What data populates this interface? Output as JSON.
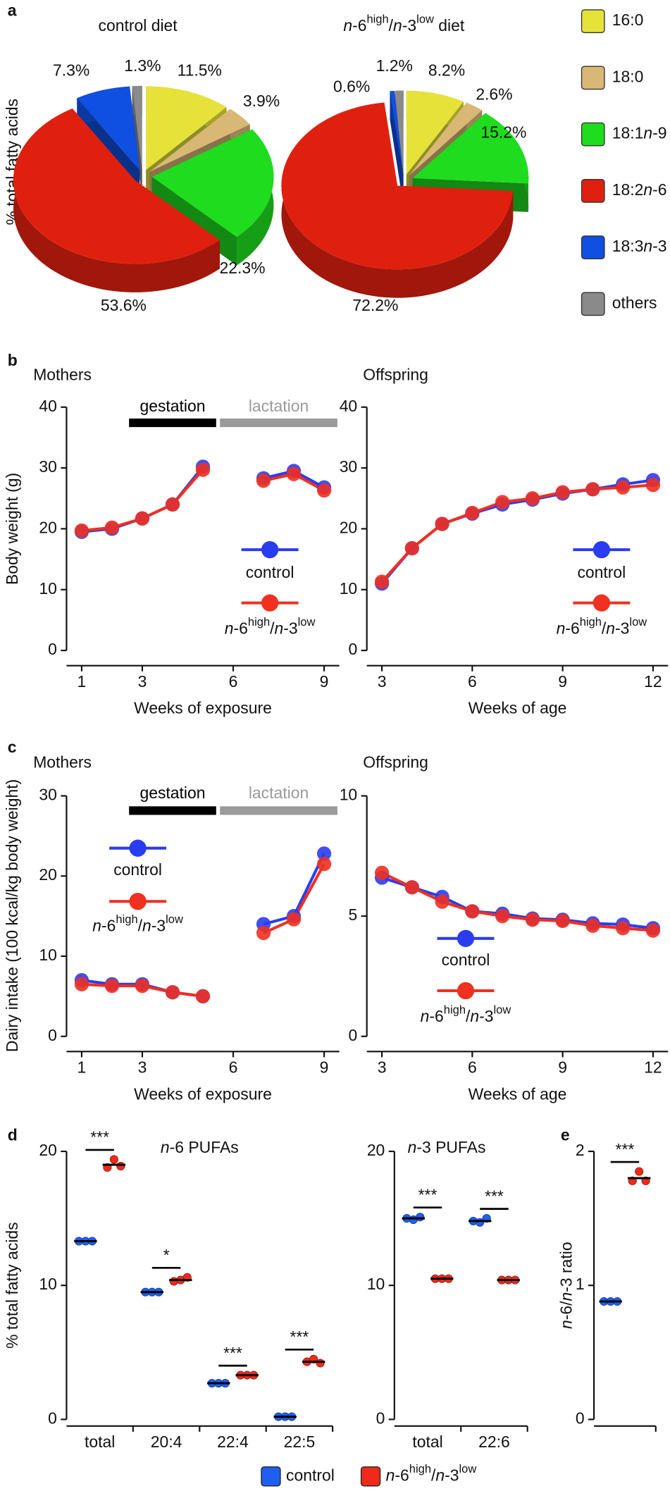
{
  "chart_data": [
    {
      "type": "pie",
      "panel": "a",
      "ylabel": "% total fatty acids",
      "categories": [
        "16:0",
        "18:0",
        "18:1n-9",
        "18:2n-6",
        "18:3n-3",
        "others"
      ],
      "colors": [
        "#e6e23a",
        "#d9b876",
        "#1fdc1f",
        "#e0200f",
        "#0f4fe2",
        "#8a8a8a"
      ],
      "series": [
        {
          "name": "control diet",
          "values": [
            11.5,
            3.9,
            22.3,
            53.6,
            7.3,
            1.3
          ],
          "value_labels": [
            "11.5%",
            "3.9%",
            "22.3%",
            "53.6%",
            "7.3%",
            "1.3%"
          ]
        },
        {
          "name": "n-6high/n-3low diet",
          "values": [
            8.2,
            2.6,
            15.2,
            72.2,
            0.6,
            1.2
          ],
          "value_labels": [
            "8.2%",
            "2.6%",
            "15.2%",
            "72.2%",
            "0.6%",
            "1.2%"
          ]
        }
      ]
    },
    {
      "type": "line",
      "panel": "b",
      "title": "Mothers",
      "xlabel": "Weeks of exposure",
      "ylabel": "Body weight (g)",
      "x": [
        1,
        2,
        3,
        4,
        5,
        6,
        7,
        8,
        9
      ],
      "xlim": [
        0.5,
        9.5
      ],
      "xticks": [
        1,
        3,
        6,
        9
      ],
      "ylim": [
        0,
        40
      ],
      "yticks": [
        0,
        10,
        20,
        30,
        40
      ],
      "periods": [
        {
          "label": "gestation",
          "start": 2.5,
          "end": 5.5,
          "color": "#000000"
        },
        {
          "label": "lactation",
          "start": 5.5,
          "end": 9.5,
          "color": "#9a9a9a"
        }
      ],
      "series": [
        {
          "name": "control",
          "color": "#2a3cf0",
          "values": [
            19.5,
            20.0,
            21.7,
            24.0,
            30.2,
            null,
            28.3,
            29.5,
            26.8
          ]
        },
        {
          "name": "n-6high/n-3low",
          "color": "#f03020",
          "values": [
            19.7,
            20.2,
            21.7,
            24.0,
            29.7,
            null,
            27.9,
            29.0,
            26.3
          ]
        }
      ]
    },
    {
      "type": "line",
      "title": "Offspring",
      "xlabel": "Weeks of age",
      "x": [
        3,
        4,
        5,
        6,
        7,
        8,
        9,
        10,
        11,
        12
      ],
      "xlim": [
        2.5,
        12.5
      ],
      "xticks": [
        3,
        6,
        9,
        12
      ],
      "ylim": [
        0,
        40
      ],
      "yticks": [
        0,
        10,
        20,
        30,
        40
      ],
      "series": [
        {
          "name": "control",
          "color": "#2a3cf0",
          "values": [
            11.0,
            16.8,
            20.8,
            22.5,
            24.0,
            24.8,
            25.8,
            26.5,
            27.3,
            28.0
          ]
        },
        {
          "name": "n-6high/n-3low",
          "color": "#f03020",
          "values": [
            11.3,
            16.8,
            20.8,
            22.6,
            24.4,
            25.0,
            26.0,
            26.5,
            26.8,
            27.2
          ]
        }
      ]
    },
    {
      "type": "line",
      "panel": "c",
      "title": "Mothers",
      "xlabel": "Weeks of exposure",
      "ylabel": "Dairy intake (100 kcal/kg body weight)",
      "x": [
        1,
        2,
        3,
        4,
        5,
        6,
        7,
        8,
        9
      ],
      "xlim": [
        0.5,
        9.5
      ],
      "xticks": [
        1,
        3,
        6,
        9
      ],
      "ylim": [
        0,
        30
      ],
      "yticks": [
        0,
        10,
        20,
        30
      ],
      "periods": [
        {
          "label": "gestation",
          "start": 2.5,
          "end": 5.5,
          "color": "#000000"
        },
        {
          "label": "lactation",
          "start": 5.5,
          "end": 9.5,
          "color": "#9a9a9a"
        }
      ],
      "series": [
        {
          "name": "control",
          "color": "#2a3cf0",
          "values": [
            7.0,
            6.5,
            6.5,
            5.5,
            5.0,
            null,
            14.0,
            15.0,
            22.8
          ]
        },
        {
          "name": "n-6high/n-3low",
          "color": "#f03020",
          "values": [
            6.5,
            6.3,
            6.3,
            5.5,
            5.0,
            null,
            12.9,
            14.6,
            21.5
          ]
        }
      ]
    },
    {
      "type": "line",
      "title": "Offspring",
      "xlabel": "Weeks of age",
      "x": [
        3,
        4,
        5,
        6,
        7,
        8,
        9,
        10,
        11,
        12
      ],
      "xlim": [
        2.5,
        12.5
      ],
      "xticks": [
        3,
        6,
        9,
        12
      ],
      "ylim": [
        0,
        10
      ],
      "yticks": [
        0,
        5,
        10
      ],
      "series": [
        {
          "name": "control",
          "color": "#2a3cf0",
          "values": [
            6.6,
            6.2,
            5.8,
            5.2,
            5.1,
            4.9,
            4.85,
            4.7,
            4.65,
            4.5
          ]
        },
        {
          "name": "n-6high/n-3low",
          "color": "#f03020",
          "values": [
            6.8,
            6.2,
            5.6,
            5.2,
            5.0,
            4.85,
            4.8,
            4.6,
            4.5,
            4.4
          ]
        }
      ]
    },
    {
      "type": "dot",
      "panel": "d",
      "title": "n-6 PUFAs",
      "ylabel": "% total fatty acids",
      "categories": [
        "total",
        "20:4",
        "22:4",
        "22:5"
      ],
      "ylim": [
        0,
        20
      ],
      "yticks": [
        0,
        10,
        20
      ],
      "significance": [
        "***",
        "*",
        "***",
        "***"
      ],
      "series": [
        {
          "name": "control",
          "color": "#1f5ff0",
          "values": [
            13.3,
            9.5,
            2.7,
            0.2
          ],
          "points": [
            [
              13.3,
              13.3,
              13.3
            ],
            [
              9.5,
              9.5,
              9.5
            ],
            [
              2.7,
              2.7,
              2.7
            ],
            [
              0.2,
              0.2,
              0.2
            ]
          ]
        },
        {
          "name": "n-6high/n-3low",
          "color": "#f02a1a",
          "values": [
            19.0,
            10.4,
            3.3,
            4.3
          ],
          "points": [
            [
              18.8,
              19.4,
              18.9
            ],
            [
              10.3,
              10.4,
              10.6
            ],
            [
              3.3,
              3.3,
              3.3
            ],
            [
              4.3,
              4.5,
              4.2
            ]
          ]
        }
      ]
    },
    {
      "type": "dot",
      "title": "n-3 PUFAs",
      "categories": [
        "total",
        "22:6"
      ],
      "ylim": [
        0,
        20
      ],
      "yticks": [
        0,
        10,
        20
      ],
      "significance": [
        "***",
        "***"
      ],
      "series": [
        {
          "color": "#1f5ff0",
          "values": [
            15.0,
            14.8
          ],
          "points": [
            [
              15.0,
              14.9,
              15.1
            ],
            [
              14.8,
              14.7,
              15.0
            ]
          ]
        },
        {
          "color": "#f02a1a",
          "values": [
            10.5,
            10.4
          ],
          "points": [
            [
              10.5,
              10.5,
              10.5
            ],
            [
              10.4,
              10.4,
              10.4
            ]
          ]
        }
      ]
    },
    {
      "type": "dot",
      "panel": "e",
      "ylabel": "n-6/n-3 ratio",
      "categories": [
        null
      ],
      "ylim": [
        0,
        2
      ],
      "yticks": [
        0,
        1,
        2
      ],
      "significance": [
        "***"
      ],
      "series": [
        {
          "color": "#1f5ff0",
          "values": [
            0.88
          ],
          "points": [
            [
              0.88,
              0.88,
              0.88
            ]
          ]
        },
        {
          "color": "#f02a1a",
          "values": [
            1.8
          ],
          "points": [
            [
              1.78,
              1.85,
              1.78
            ]
          ]
        }
      ]
    }
  ]
}
